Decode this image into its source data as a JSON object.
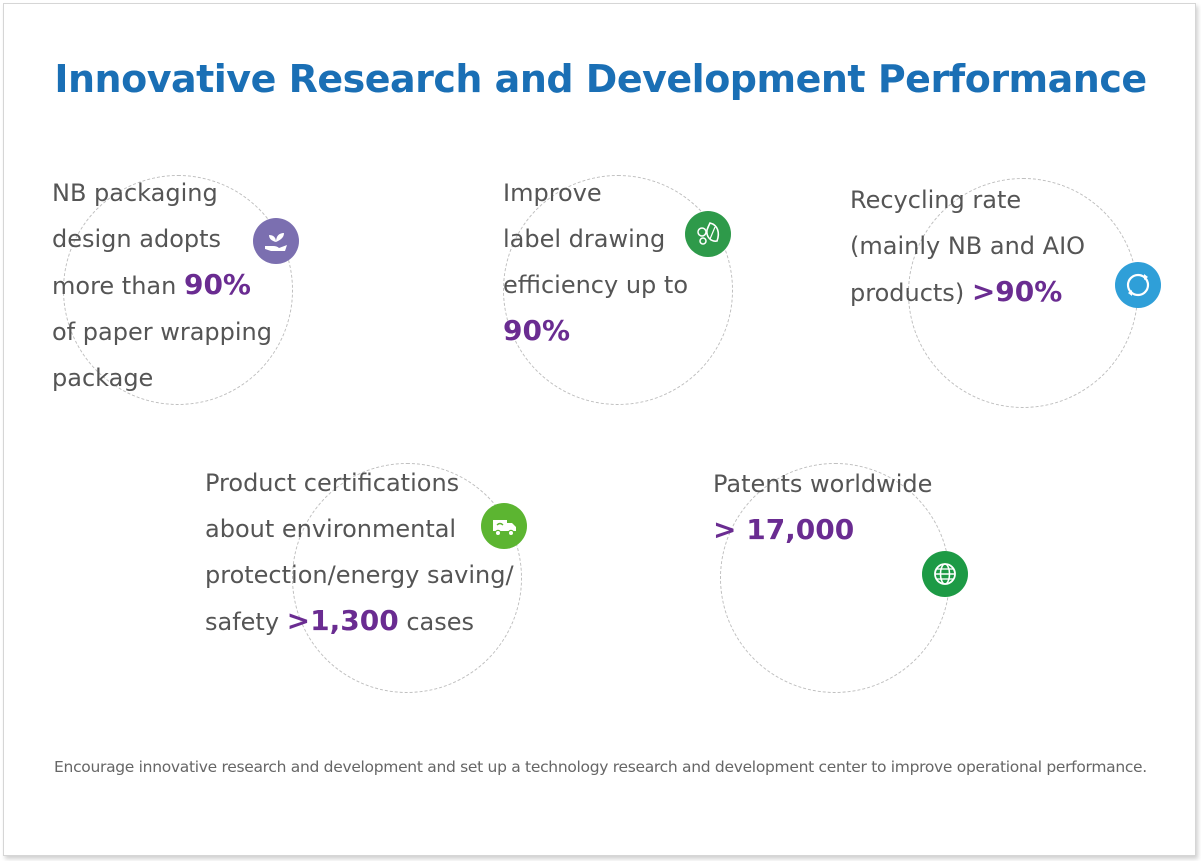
{
  "title": "Innovative Research and Development Performance",
  "colors": {
    "title": "#1a6fb5",
    "highlight": "#6a2c91",
    "text": "#555555"
  },
  "stats": [
    {
      "lines": [
        "NB packaging",
        "design adopts"
      ],
      "mid_pre": "more than ",
      "mid_value": "90%",
      "tail": [
        "of paper wrapping",
        "package"
      ],
      "icon": "hand-plant-icon",
      "icon_color": "#7b6fb0"
    },
    {
      "lines": [
        "Improve",
        "label drawing",
        "efficiency up to"
      ],
      "value": "90%",
      "icon": "leaf-gear-icon",
      "icon_color": "#2e9a4a"
    },
    {
      "lines": [
        "Recycling rate",
        "(mainly NB and AIO"
      ],
      "last_pre": "products) ",
      "last_value": ">90%",
      "icon": "recycle-icon",
      "icon_color": "#2f9fd8"
    },
    {
      "lines": [
        "Product certifications",
        "about environmental",
        "protection/energy saving/"
      ],
      "last_pre": "safety ",
      "last_value": ">1,300",
      "last_post": " cases",
      "icon": "truck-icon",
      "icon_color": "#5cb531"
    },
    {
      "lines": [
        "Patents worldwide"
      ],
      "value": "> 17,000",
      "icon": "globe-icon",
      "icon_color": "#1d9a45"
    }
  ],
  "footer": "Encourage innovative research and development and set up a technology research and development center to improve operational performance."
}
